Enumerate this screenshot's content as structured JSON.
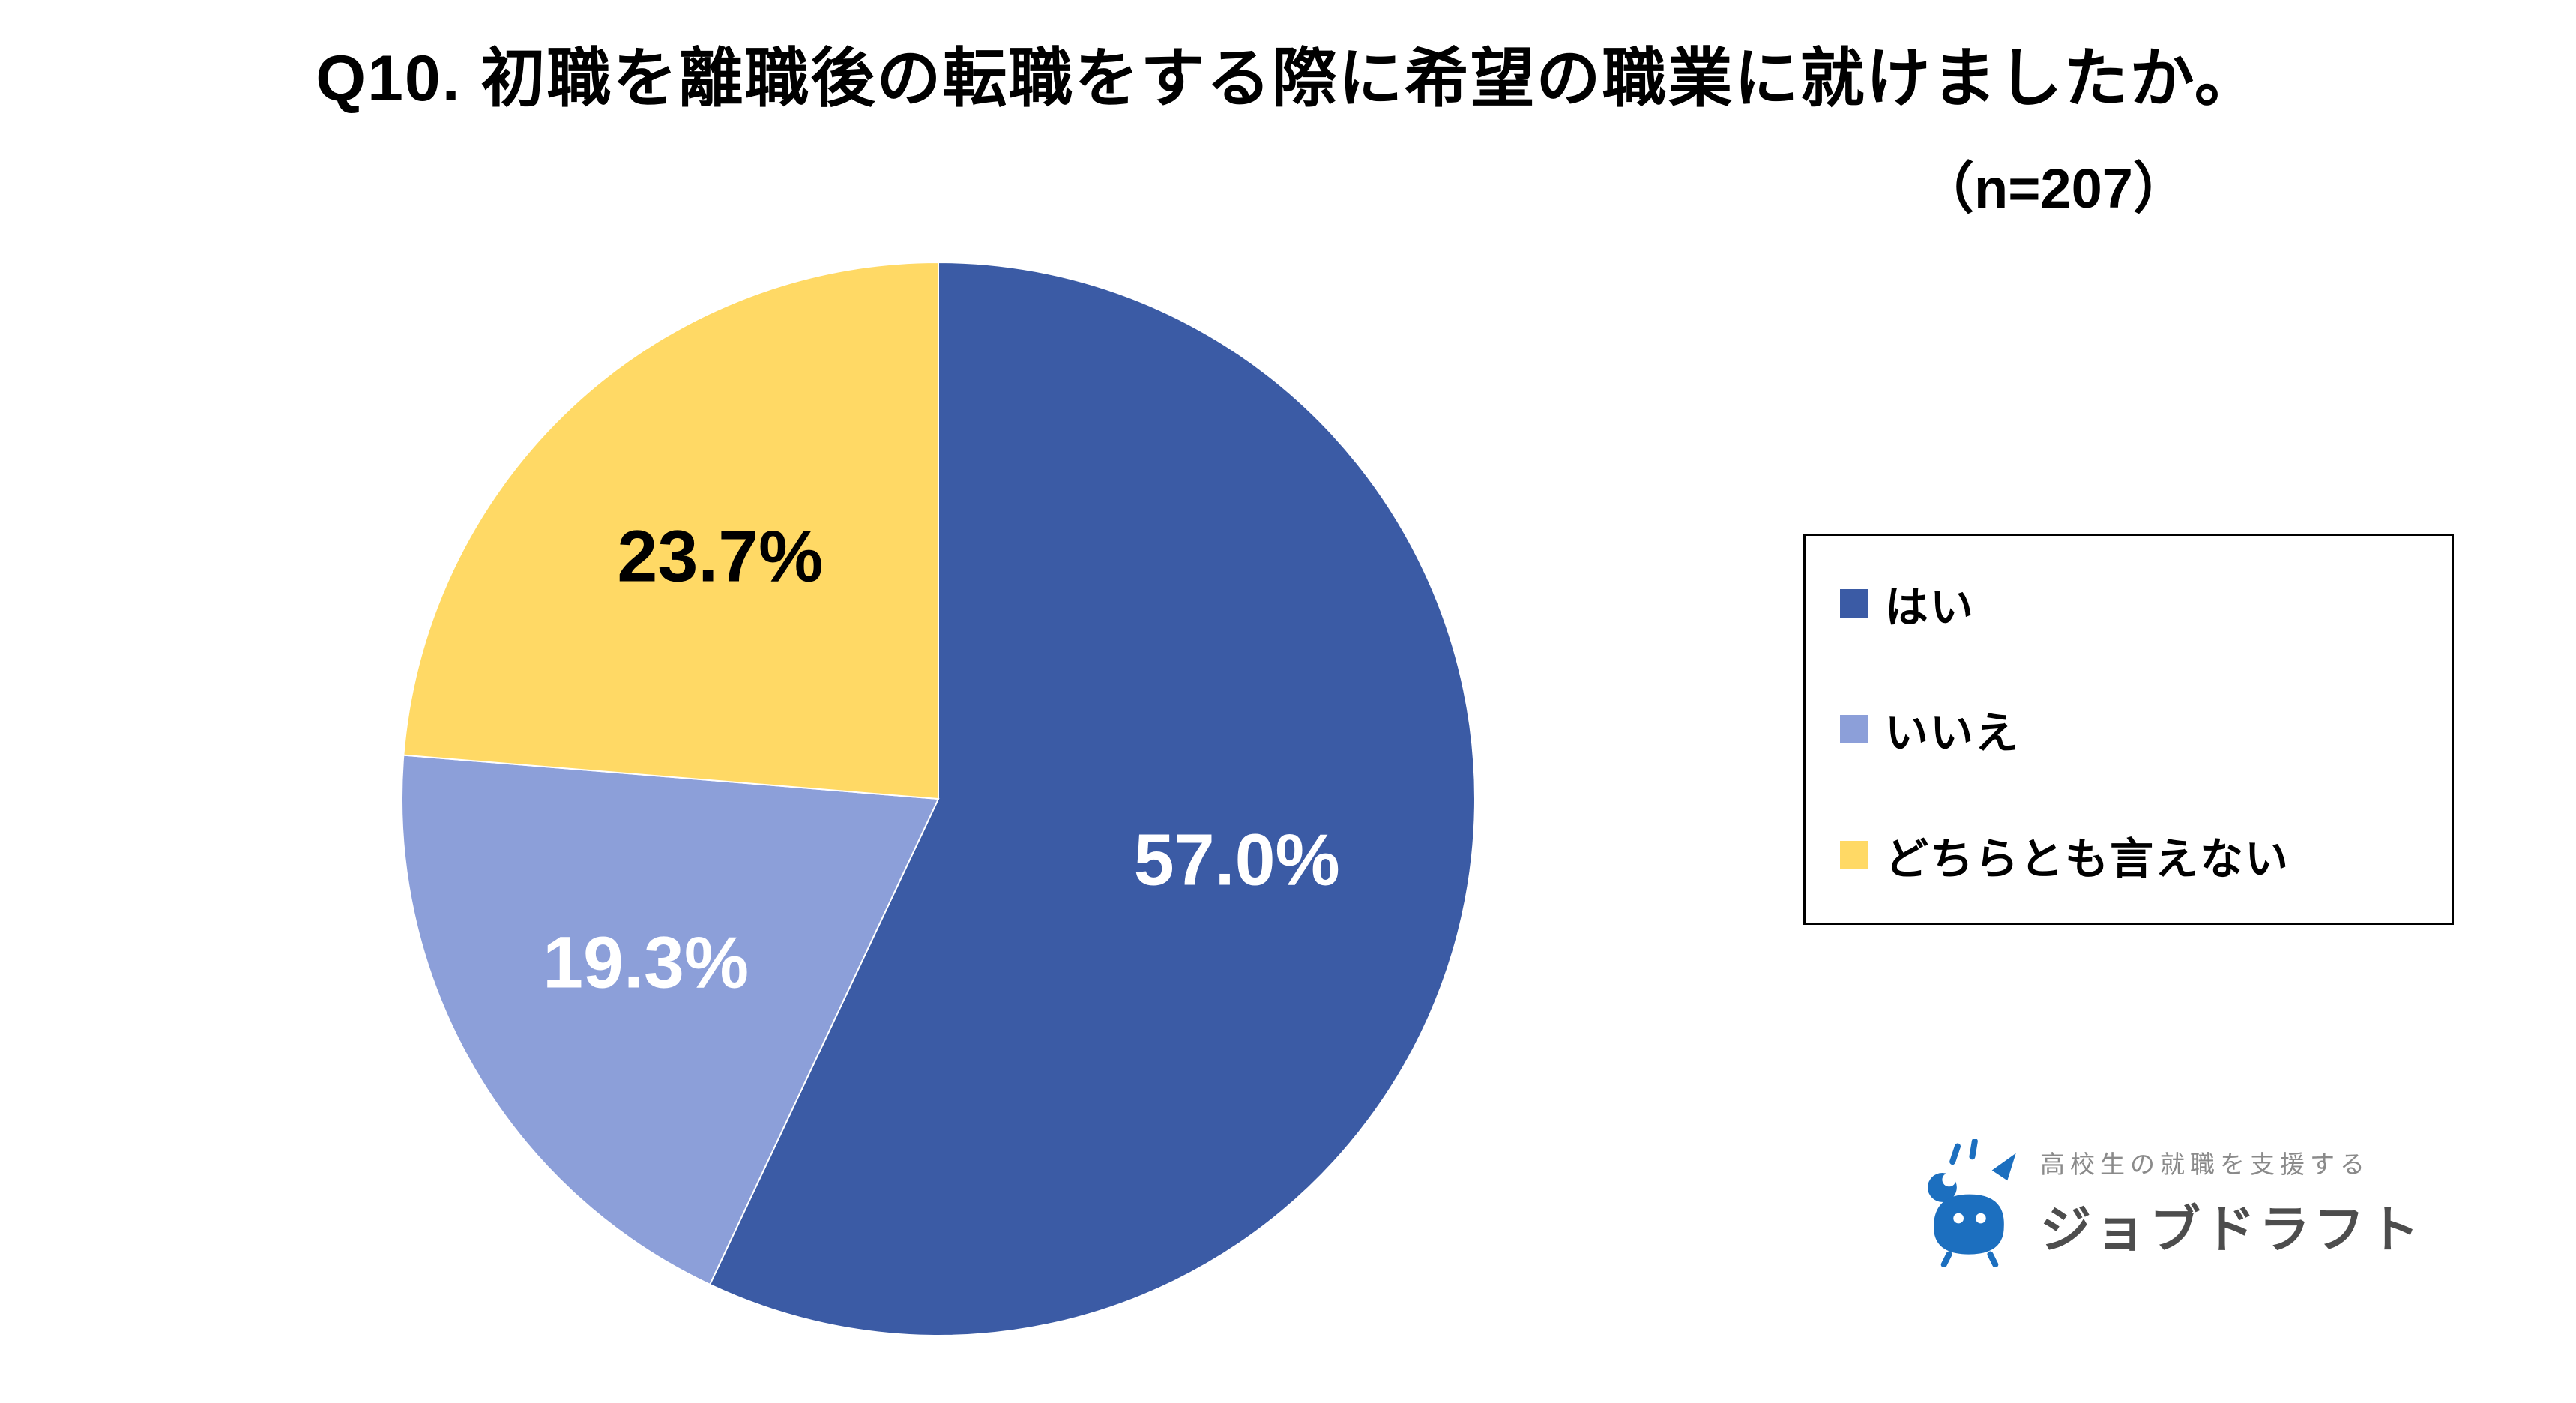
{
  "chart_data": {
    "type": "pie",
    "title": "Q10. 初職を離職後の転職をする際に希望の職業に就けましたか。",
    "sample_label": "（n=207）",
    "labels": [
      "はい",
      "いいえ",
      "どちらとも言えない"
    ],
    "values": [
      57.0,
      19.3,
      23.7
    ],
    "value_labels": [
      "57.0%",
      "19.3%",
      "23.7%"
    ],
    "colors": [
      "#3B5BA5",
      "#8C9FD9",
      "#FFD965"
    ],
    "label_colors": [
      "#FFFFFF",
      "#FFFFFF",
      "#000000"
    ],
    "start_angle_deg": 0,
    "direction": "clockwise",
    "legend_position": "right",
    "background": "#FFFFFF"
  },
  "logo": {
    "tagline": "高校生の就職を支援する",
    "brand": "ジョブドラフト",
    "icon_color": "#1C6FBF"
  }
}
